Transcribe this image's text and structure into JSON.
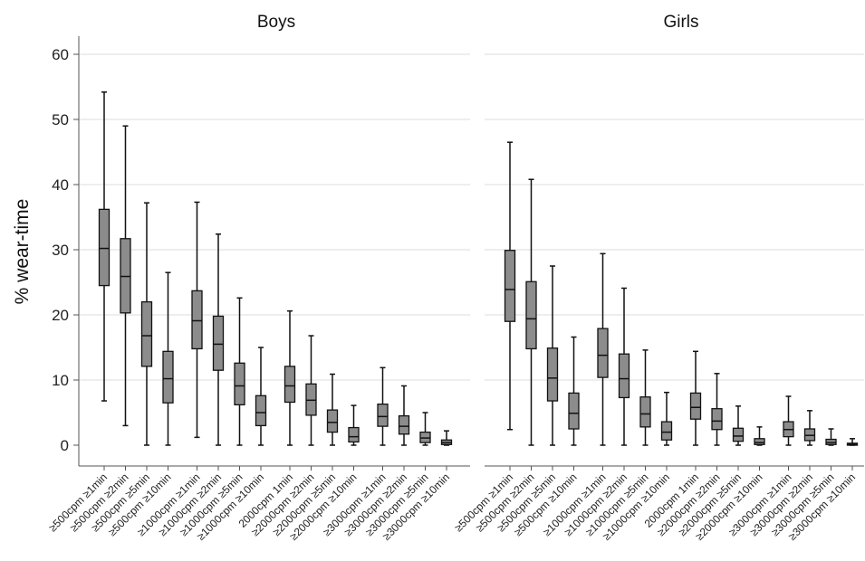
{
  "chart_data": {
    "type": "boxplot",
    "ylabel": "% wear-time",
    "ylim": [
      0,
      62
    ],
    "yticks": [
      0,
      10,
      20,
      30,
      40,
      50,
      60
    ],
    "grid": true,
    "colors": {
      "box_fill": "#8c8c8c",
      "grid": "#dedede",
      "axis": "#555555"
    },
    "categories": [
      "≥500cpm ≥1min",
      "≥500cpm ≥2min",
      "≥500cpm ≥5min",
      "≥500cpm ≥10min",
      "≥1000cpm ≥1min",
      "≥1000cpm ≥2min",
      "≥1000cpm ≥5min",
      "≥1000cpm ≥10min",
      "2000cpm 1min",
      "≥2000cpm ≥2min",
      "≥2000cpm ≥5min",
      "≥2000cpm ≥10min",
      "≥3000cpm ≥1min",
      "≥3000cpm ≥2min",
      "≥3000cpm ≥5min",
      "≥3000cpm ≥10min"
    ],
    "panels": [
      {
        "title": "Boys",
        "boxes": [
          {
            "min": 6.8,
            "q1": 24.5,
            "median": 30.2,
            "q3": 36.2,
            "max": 54.2
          },
          {
            "min": 3.0,
            "q1": 20.3,
            "median": 25.9,
            "q3": 31.7,
            "max": 49.0
          },
          {
            "min": 0.0,
            "q1": 12.1,
            "median": 16.8,
            "q3": 22.0,
            "max": 37.2
          },
          {
            "min": 0.0,
            "q1": 6.5,
            "median": 10.2,
            "q3": 14.4,
            "max": 26.5
          },
          {
            "min": 1.2,
            "q1": 14.8,
            "median": 19.1,
            "q3": 23.7,
            "max": 37.3
          },
          {
            "min": 0.0,
            "q1": 11.5,
            "median": 15.5,
            "q3": 19.8,
            "max": 32.4
          },
          {
            "min": 0.0,
            "q1": 6.2,
            "median": 9.1,
            "q3": 12.6,
            "max": 22.6
          },
          {
            "min": 0.0,
            "q1": 3.0,
            "median": 5.0,
            "q3": 7.6,
            "max": 15.0
          },
          {
            "min": 0.0,
            "q1": 6.6,
            "median": 9.1,
            "q3": 12.1,
            "max": 20.6
          },
          {
            "min": 0.0,
            "q1": 4.6,
            "median": 6.9,
            "q3": 9.4,
            "max": 16.8
          },
          {
            "min": 0.0,
            "q1": 2.0,
            "median": 3.5,
            "q3": 5.4,
            "max": 10.9
          },
          {
            "min": 0.0,
            "q1": 0.5,
            "median": 1.3,
            "q3": 2.7,
            "max": 6.1
          },
          {
            "min": 0.0,
            "q1": 2.9,
            "median": 4.4,
            "q3": 6.3,
            "max": 11.9
          },
          {
            "min": 0.0,
            "q1": 1.7,
            "median": 2.9,
            "q3": 4.5,
            "max": 9.1
          },
          {
            "min": 0.0,
            "q1": 0.4,
            "median": 1.1,
            "q3": 2.0,
            "max": 5.0
          },
          {
            "min": 0.0,
            "q1": 0.1,
            "median": 0.4,
            "q3": 0.8,
            "max": 2.2
          }
        ]
      },
      {
        "title": "Girls",
        "boxes": [
          {
            "min": 2.4,
            "q1": 19.0,
            "median": 23.9,
            "q3": 29.9,
            "max": 46.5
          },
          {
            "min": 0.0,
            "q1": 14.8,
            "median": 19.4,
            "q3": 25.1,
            "max": 40.8
          },
          {
            "min": 0.0,
            "q1": 6.8,
            "median": 10.3,
            "q3": 14.9,
            "max": 27.5
          },
          {
            "min": 0.0,
            "q1": 2.5,
            "median": 4.9,
            "q3": 8.0,
            "max": 16.6
          },
          {
            "min": 0.0,
            "q1": 10.4,
            "median": 13.8,
            "q3": 17.9,
            "max": 29.4
          },
          {
            "min": 0.0,
            "q1": 7.3,
            "median": 10.2,
            "q3": 14.0,
            "max": 24.1
          },
          {
            "min": 0.0,
            "q1": 2.8,
            "median": 4.8,
            "q3": 7.4,
            "max": 14.6
          },
          {
            "min": 0.0,
            "q1": 0.8,
            "median": 2.0,
            "q3": 3.6,
            "max": 8.1
          },
          {
            "min": 0.0,
            "q1": 4.0,
            "median": 5.8,
            "q3": 8.0,
            "max": 14.4
          },
          {
            "min": 0.0,
            "q1": 2.4,
            "median": 3.7,
            "q3": 5.6,
            "max": 11.0
          },
          {
            "min": 0.0,
            "q1": 0.6,
            "median": 1.4,
            "q3": 2.6,
            "max": 6.0
          },
          {
            "min": 0.0,
            "q1": 0.1,
            "median": 0.4,
            "q3": 1.0,
            "max": 2.8
          },
          {
            "min": 0.0,
            "q1": 1.3,
            "median": 2.4,
            "q3": 3.6,
            "max": 7.5
          },
          {
            "min": 0.0,
            "q1": 0.7,
            "median": 1.5,
            "q3": 2.5,
            "max": 5.3
          },
          {
            "min": 0.0,
            "q1": 0.1,
            "median": 0.4,
            "q3": 0.9,
            "max": 2.5
          },
          {
            "min": 0.0,
            "q1": 0.0,
            "median": 0.1,
            "q3": 0.3,
            "max": 1.0
          }
        ]
      }
    ]
  }
}
